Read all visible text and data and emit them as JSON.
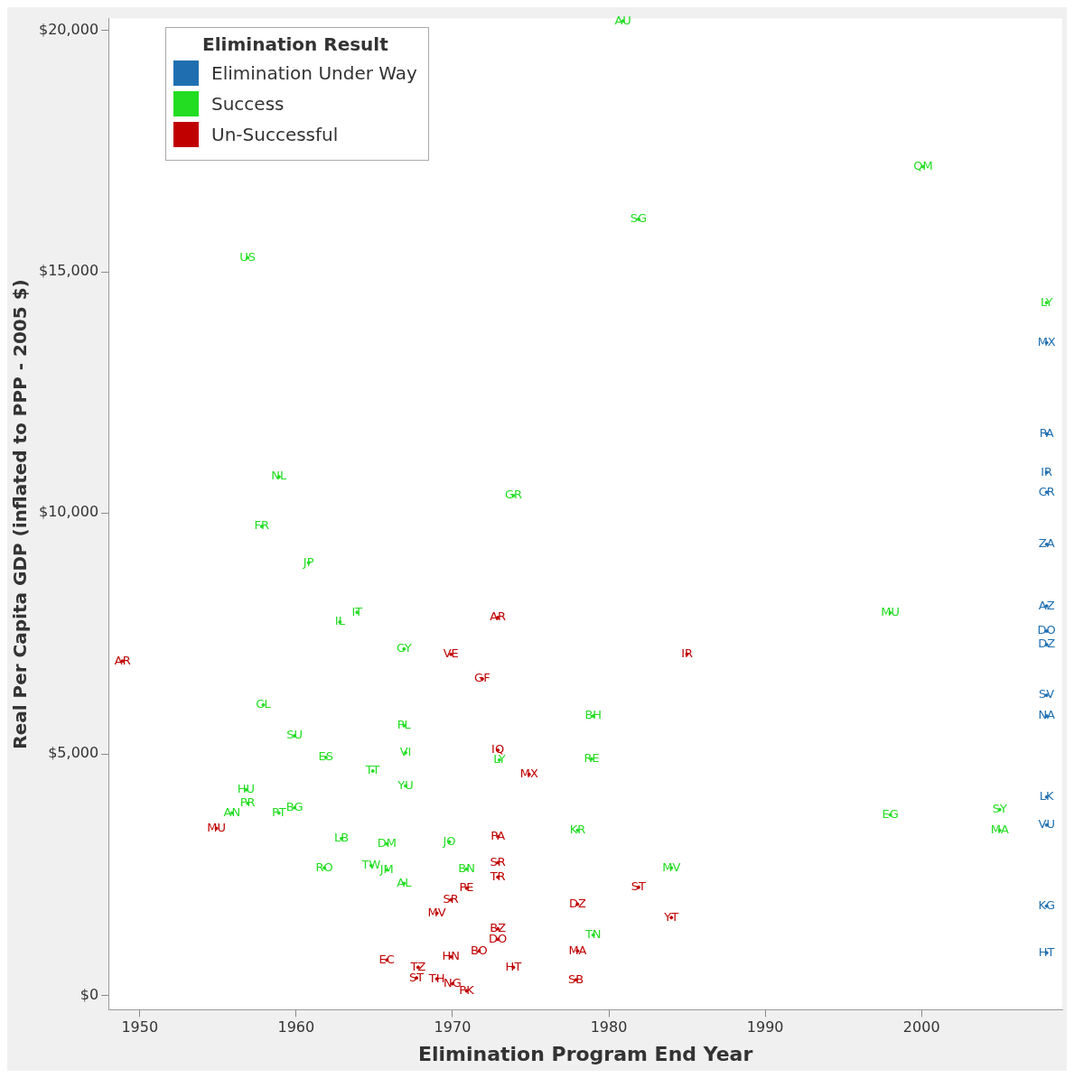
{
  "chart_data": {
    "type": "scatter",
    "xlabel": "Elimination Program End Year",
    "ylabel": "Real Per Capita GDP (inflated to PPP - 2005 $)",
    "legend_title": "Elimination Result",
    "legend": "top left",
    "grid": false,
    "xlim": [
      1948,
      2009
    ],
    "xticks": [
      1950,
      1960,
      1970,
      1980,
      1990,
      2000
    ],
    "ylim": [
      -300,
      20250
    ],
    "yticks": [
      {
        "value": 0,
        "label": "$0"
      },
      {
        "value": 5000,
        "label": "$5,000"
      },
      {
        "value": 10000,
        "label": "$10,000"
      },
      {
        "value": 15000,
        "label": "$15,000"
      },
      {
        "value": 20000,
        "label": "$20,000"
      }
    ],
    "series": [
      {
        "name": "Elimination Under Way",
        "color": "#1f6fb0",
        "x": [
          2008,
          2008,
          2008,
          2008,
          2008,
          2008,
          2008,
          2008,
          2008,
          2008,
          2008,
          2008,
          2008,
          2008
        ],
        "values": [
          13530,
          11640,
          10840,
          10430,
          9350,
          8070,
          7550,
          7270,
          6220,
          5790,
          4110,
          3530,
          1850,
          880
        ],
        "value_labels": [
          "MX",
          "PA",
          "IR",
          "CR",
          "ZA",
          "AZ",
          "DO",
          "DZ",
          "SV",
          "NA",
          "LK",
          "VU",
          "KG",
          "HT"
        ]
      },
      {
        "name": "Success",
        "color": "#22dd22",
        "x": [
          1956.9,
          1980.9,
          2000.1,
          1981.9,
          1958.9,
          1973.9,
          1957.8,
          1960.8,
          1963.9,
          1962.8,
          1998,
          1966.9,
          1957.9,
          1959.9,
          1966.9,
          1979,
          1967,
          1961.9,
          1973,
          1978.9,
          1964.9,
          1967,
          1956.8,
          1956.9,
          1955.9,
          1959.9,
          1958.9,
          1998,
          2005,
          2005,
          1962.9,
          1965.8,
          1969.8,
          1978,
          1961.8,
          1964.8,
          1965.8,
          1966.9,
          1970.9,
          1984,
          1979,
          2008
        ],
        "values": [
          15290,
          20200,
          17180,
          16090,
          10750,
          10360,
          9720,
          8970,
          7940,
          7740,
          7930,
          7180,
          6020,
          5380,
          5590,
          5790,
          5030,
          4930,
          4880,
          4900,
          4650,
          4340,
          4260,
          3980,
          3780,
          3890,
          3780,
          3740,
          3850,
          3420,
          3250,
          3140,
          3180,
          3420,
          2640,
          2690,
          2600,
          2320,
          2620,
          2640,
          1250,
          14360
        ],
        "value_labels": [
          "US",
          "AU",
          "QM",
          "SG",
          "NL",
          "GR",
          "FR",
          "JP",
          "IT",
          "IL",
          "MU",
          "CY",
          "CL",
          "SU",
          "PL",
          "BH",
          "VI",
          "ES",
          "LY",
          "RE",
          "TT",
          "YU",
          "HU",
          "PR",
          "AN",
          "BG",
          "PT",
          "EG",
          "SY",
          "MA",
          "LB",
          "DM",
          "JO",
          "KR",
          "RO",
          "TW",
          "JM",
          "AL",
          "BN",
          "MV",
          "TN",
          "LY"
        ]
      },
      {
        "name": "Un-Successful",
        "color": "#c00000",
        "x": [
          1948.9,
          1972.9,
          1969.9,
          1971.9,
          1985,
          1972.9,
          1974.9,
          1954.9,
          1972.9,
          1972.9,
          1972.9,
          1970.9,
          1969.9,
          1969,
          1978,
          1981.9,
          1984,
          1972.9,
          1972.9,
          1978,
          1965.8,
          1977.9,
          1973.9,
          1969.9,
          1971.7,
          1967.8,
          1967.7,
          1969,
          1970,
          1970.9
        ],
        "values": [
          6930,
          7830,
          7070,
          6560,
          7070,
          5080,
          4580,
          3460,
          3290,
          2750,
          2450,
          2220,
          1980,
          1700,
          1890,
          2240,
          1610,
          1380,
          1160,
          920,
          730,
          320,
          580,
          800,
          920,
          580,
          360,
          340,
          240,
          90
        ],
        "value_labels": [
          "AR",
          "AR",
          "VE",
          "GF",
          "IR",
          "IQ",
          "MX",
          "MU",
          "PA",
          "SR",
          "TR",
          "PE",
          "SR",
          "MV",
          "DZ",
          "ST",
          "YT",
          "BZ",
          "DO",
          "MA",
          "EC",
          "SB",
          "HT",
          "HN",
          "BO",
          "TZ",
          "ST",
          "TH",
          "NG",
          "PK"
        ]
      }
    ]
  }
}
